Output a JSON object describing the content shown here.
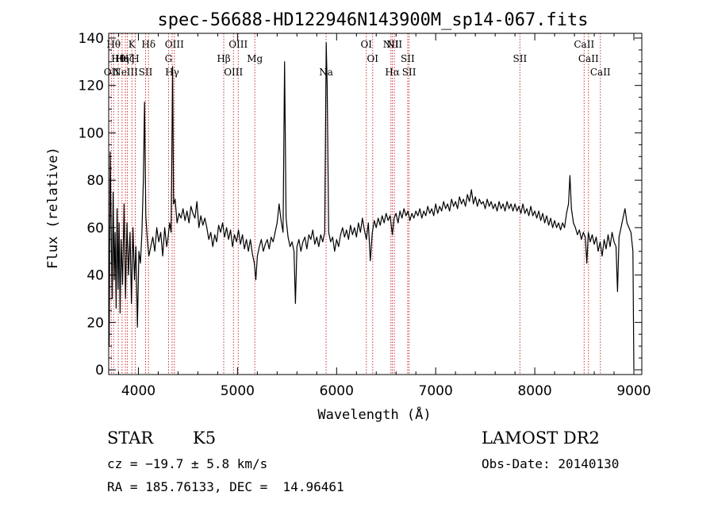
{
  "chart_data": {
    "type": "line",
    "title": "spec-56688-HD122946N143900M_sp14-067.fits",
    "xlabel": "Wavelength (Å)",
    "ylabel": "Flux (relative)",
    "xlim": [
      3700,
      9080
    ],
    "ylim": [
      -2,
      142
    ],
    "x_ticks": [
      4000,
      5000,
      6000,
      7000,
      8000,
      9000
    ],
    "y_ticks": [
      0,
      20,
      40,
      60,
      80,
      100,
      120,
      140
    ],
    "grid": false,
    "series": [
      {
        "color": "#000000",
        "points": [
          [
            3705,
            10
          ],
          [
            3715,
            92
          ],
          [
            3725,
            60
          ],
          [
            3735,
            30
          ],
          [
            3745,
            75
          ],
          [
            3755,
            38
          ],
          [
            3765,
            58
          ],
          [
            3775,
            26
          ],
          [
            3785,
            68
          ],
          [
            3795,
            34
          ],
          [
            3805,
            62
          ],
          [
            3815,
            24
          ],
          [
            3825,
            55
          ],
          [
            3840,
            36
          ],
          [
            3855,
            70
          ],
          [
            3870,
            30
          ],
          [
            3885,
            62
          ],
          [
            3900,
            40
          ],
          [
            3915,
            58
          ],
          [
            3930,
            28
          ],
          [
            3945,
            60
          ],
          [
            3960,
            38
          ],
          [
            3975,
            52
          ],
          [
            3990,
            18
          ],
          [
            4005,
            50
          ],
          [
            4020,
            45
          ],
          [
            4035,
            57
          ],
          [
            4050,
            80
          ],
          [
            4062,
            113
          ],
          [
            4075,
            65
          ],
          [
            4090,
            55
          ],
          [
            4105,
            48
          ],
          [
            4125,
            52
          ],
          [
            4145,
            56
          ],
          [
            4165,
            50
          ],
          [
            4185,
            60
          ],
          [
            4205,
            54
          ],
          [
            4225,
            58
          ],
          [
            4245,
            48
          ],
          [
            4265,
            60
          ],
          [
            4285,
            52
          ],
          [
            4300,
            56
          ],
          [
            4315,
            62
          ],
          [
            4330,
            58
          ],
          [
            4345,
            128
          ],
          [
            4355,
            70
          ],
          [
            4370,
            72
          ],
          [
            4390,
            62
          ],
          [
            4410,
            66
          ],
          [
            4430,
            64
          ],
          [
            4450,
            68
          ],
          [
            4470,
            63
          ],
          [
            4490,
            67
          ],
          [
            4510,
            62
          ],
          [
            4530,
            69
          ],
          [
            4550,
            66
          ],
          [
            4570,
            64
          ],
          [
            4590,
            71
          ],
          [
            4610,
            60
          ],
          [
            4630,
            65
          ],
          [
            4650,
            61
          ],
          [
            4670,
            64
          ],
          [
            4690,
            60
          ],
          [
            4710,
            55
          ],
          [
            4730,
            58
          ],
          [
            4750,
            52
          ],
          [
            4770,
            57
          ],
          [
            4790,
            54
          ],
          [
            4810,
            61
          ],
          [
            4830,
            58
          ],
          [
            4850,
            62
          ],
          [
            4870,
            56
          ],
          [
            4890,
            60
          ],
          [
            4910,
            55
          ],
          [
            4930,
            59
          ],
          [
            4950,
            52
          ],
          [
            4970,
            57
          ],
          [
            4990,
            54
          ],
          [
            5010,
            59
          ],
          [
            5030,
            53
          ],
          [
            5050,
            57
          ],
          [
            5070,
            51
          ],
          [
            5090,
            55
          ],
          [
            5110,
            50
          ],
          [
            5130,
            55
          ],
          [
            5150,
            49
          ],
          [
            5170,
            45
          ],
          [
            5185,
            38
          ],
          [
            5200,
            48
          ],
          [
            5220,
            52
          ],
          [
            5240,
            55
          ],
          [
            5260,
            50
          ],
          [
            5280,
            53
          ],
          [
            5300,
            55
          ],
          [
            5320,
            51
          ],
          [
            5340,
            56
          ],
          [
            5360,
            54
          ],
          [
            5380,
            58
          ],
          [
            5400,
            62
          ],
          [
            5420,
            70
          ],
          [
            5440,
            63
          ],
          [
            5460,
            58
          ],
          [
            5475,
            130
          ],
          [
            5490,
            64
          ],
          [
            5510,
            56
          ],
          [
            5530,
            52
          ],
          [
            5550,
            54
          ],
          [
            5570,
            50
          ],
          [
            5585,
            28
          ],
          [
            5600,
            52
          ],
          [
            5620,
            55
          ],
          [
            5640,
            50
          ],
          [
            5660,
            54
          ],
          [
            5680,
            56
          ],
          [
            5700,
            51
          ],
          [
            5720,
            57
          ],
          [
            5740,
            55
          ],
          [
            5760,
            59
          ],
          [
            5780,
            53
          ],
          [
            5800,
            56
          ],
          [
            5820,
            52
          ],
          [
            5840,
            57
          ],
          [
            5860,
            54
          ],
          [
            5880,
            58
          ],
          [
            5895,
            138
          ],
          [
            5905,
            120
          ],
          [
            5920,
            58
          ],
          [
            5940,
            54
          ],
          [
            5960,
            56
          ],
          [
            5980,
            50
          ],
          [
            6000,
            55
          ],
          [
            6020,
            52
          ],
          [
            6040,
            57
          ],
          [
            6060,
            60
          ],
          [
            6080,
            56
          ],
          [
            6100,
            59
          ],
          [
            6120,
            55
          ],
          [
            6140,
            61
          ],
          [
            6160,
            57
          ],
          [
            6180,
            60
          ],
          [
            6200,
            56
          ],
          [
            6220,
            62
          ],
          [
            6240,
            58
          ],
          [
            6260,
            64
          ],
          [
            6280,
            59
          ],
          [
            6300,
            55
          ],
          [
            6320,
            62
          ],
          [
            6340,
            46
          ],
          [
            6360,
            58
          ],
          [
            6380,
            63
          ],
          [
            6400,
            60
          ],
          [
            6420,
            64
          ],
          [
            6440,
            61
          ],
          [
            6460,
            65
          ],
          [
            6480,
            62
          ],
          [
            6500,
            66
          ],
          [
            6520,
            63
          ],
          [
            6540,
            65
          ],
          [
            6563,
            57
          ],
          [
            6580,
            64
          ],
          [
            6600,
            66
          ],
          [
            6620,
            62
          ],
          [
            6640,
            67
          ],
          [
            6660,
            64
          ],
          [
            6680,
            68
          ],
          [
            6700,
            65
          ],
          [
            6720,
            67
          ],
          [
            6740,
            63
          ],
          [
            6760,
            66
          ],
          [
            6780,
            64
          ],
          [
            6800,
            67
          ],
          [
            6820,
            65
          ],
          [
            6840,
            68
          ],
          [
            6860,
            64
          ],
          [
            6880,
            67
          ],
          [
            6900,
            65
          ],
          [
            6920,
            69
          ],
          [
            6940,
            66
          ],
          [
            6960,
            68
          ],
          [
            6980,
            65
          ],
          [
            7000,
            70
          ],
          [
            7020,
            66
          ],
          [
            7040,
            69
          ],
          [
            7060,
            67
          ],
          [
            7080,
            71
          ],
          [
            7100,
            68
          ],
          [
            7120,
            70
          ],
          [
            7140,
            67
          ],
          [
            7160,
            72
          ],
          [
            7180,
            69
          ],
          [
            7200,
            71
          ],
          [
            7220,
            68
          ],
          [
            7240,
            73
          ],
          [
            7260,
            70
          ],
          [
            7280,
            72
          ],
          [
            7300,
            69
          ],
          [
            7320,
            74
          ],
          [
            7340,
            71
          ],
          [
            7360,
            76
          ],
          [
            7380,
            70
          ],
          [
            7400,
            73
          ],
          [
            7420,
            69
          ],
          [
            7440,
            72
          ],
          [
            7460,
            70
          ],
          [
            7480,
            71
          ],
          [
            7500,
            68
          ],
          [
            7520,
            72
          ],
          [
            7540,
            69
          ],
          [
            7560,
            71
          ],
          [
            7580,
            68
          ],
          [
            7600,
            70
          ],
          [
            7620,
            67
          ],
          [
            7640,
            71
          ],
          [
            7660,
            68
          ],
          [
            7680,
            70
          ],
          [
            7700,
            67
          ],
          [
            7720,
            71
          ],
          [
            7740,
            68
          ],
          [
            7760,
            70
          ],
          [
            7780,
            67
          ],
          [
            7800,
            70
          ],
          [
            7820,
            67
          ],
          [
            7840,
            69
          ],
          [
            7860,
            66
          ],
          [
            7880,
            70
          ],
          [
            7900,
            66
          ],
          [
            7920,
            68
          ],
          [
            7940,
            65
          ],
          [
            7960,
            69
          ],
          [
            7980,
            65
          ],
          [
            8000,
            67
          ],
          [
            8020,
            64
          ],
          [
            8040,
            67
          ],
          [
            8060,
            63
          ],
          [
            8080,
            66
          ],
          [
            8100,
            62
          ],
          [
            8120,
            65
          ],
          [
            8140,
            61
          ],
          [
            8160,
            64
          ],
          [
            8180,
            60
          ],
          [
            8200,
            63
          ],
          [
            8220,
            60
          ],
          [
            8240,
            62
          ],
          [
            8260,
            59
          ],
          [
            8280,
            62
          ],
          [
            8300,
            60
          ],
          [
            8320,
            66
          ],
          [
            8340,
            70
          ],
          [
            8355,
            82
          ],
          [
            8370,
            68
          ],
          [
            8390,
            62
          ],
          [
            8410,
            60
          ],
          [
            8430,
            57
          ],
          [
            8450,
            59
          ],
          [
            8470,
            55
          ],
          [
            8490,
            58
          ],
          [
            8510,
            56
          ],
          [
            8525,
            45
          ],
          [
            8540,
            58
          ],
          [
            8560,
            54
          ],
          [
            8580,
            57
          ],
          [
            8600,
            53
          ],
          [
            8620,
            56
          ],
          [
            8640,
            50
          ],
          [
            8660,
            54
          ],
          [
            8680,
            48
          ],
          [
            8700,
            55
          ],
          [
            8720,
            51
          ],
          [
            8740,
            57
          ],
          [
            8760,
            52
          ],
          [
            8780,
            58
          ],
          [
            8800,
            54
          ],
          [
            8820,
            52
          ],
          [
            8835,
            33
          ],
          [
            8850,
            56
          ],
          [
            8870,
            60
          ],
          [
            8890,
            64
          ],
          [
            8910,
            68
          ],
          [
            8930,
            62
          ],
          [
            8950,
            60
          ],
          [
            8970,
            58
          ],
          [
            8990,
            50
          ],
          [
            9000,
            0
          ]
        ]
      }
    ],
    "spectral_lines": [
      {
        "wl": 3727,
        "label": "OII",
        "row": 2
      },
      {
        "wl": 3750,
        "label": "Hθ",
        "row": 0
      },
      {
        "wl": 3797,
        "label": "Hθ",
        "row": 1
      },
      {
        "wl": 3835,
        "label": "Hη",
        "row": 1
      },
      {
        "wl": 3869,
        "label": "NeIII",
        "row": 2
      },
      {
        "wl": 3889,
        "label": "Hζ",
        "row": 1
      },
      {
        "wl": 3934,
        "label": "K",
        "row": 0
      },
      {
        "wl": 3968,
        "label": "H",
        "row": 1
      },
      {
        "wl": 4072,
        "label": "SII",
        "row": 2
      },
      {
        "wl": 4102,
        "label": "Hδ",
        "row": 0
      },
      {
        "wl": 4304,
        "label": "G",
        "row": 1
      },
      {
        "wl": 4340,
        "label": "Hγ",
        "row": 2
      },
      {
        "wl": 4363,
        "label": "OIII",
        "row": 0
      },
      {
        "wl": 4861,
        "label": "Hβ",
        "row": 1
      },
      {
        "wl": 4959,
        "label": "OIII",
        "row": 2
      },
      {
        "wl": 5007,
        "label": "OIII",
        "row": 0
      },
      {
        "wl": 5175,
        "label": "Mg",
        "row": 1
      },
      {
        "wl": 5894,
        "label": "Na",
        "row": 2
      },
      {
        "wl": 6300,
        "label": "OI",
        "row": 0
      },
      {
        "wl": 6364,
        "label": "OI",
        "row": 1
      },
      {
        "wl": 6548,
        "label": "NII",
        "row": 0
      },
      {
        "wl": 6563,
        "label": "Hα",
        "row": 2
      },
      {
        "wl": 6583,
        "label": "NII",
        "row": 0
      },
      {
        "wl": 6717,
        "label": "SII",
        "row": 1
      },
      {
        "wl": 6731,
        "label": "SII",
        "row": 2
      },
      {
        "wl": 7850,
        "label": "SII",
        "row": 1
      },
      {
        "wl": 8498,
        "label": "CaII",
        "row": 0
      },
      {
        "wl": 8542,
        "label": "CaII",
        "row": 1
      },
      {
        "wl": 8662,
        "label": "CaII",
        "row": 2
      }
    ],
    "line_color": "#cc3333"
  },
  "info": {
    "object_class": "STAR",
    "subclass": "K5",
    "survey": "LAMOST DR2",
    "redshift": "cz = −19.7 ± 5.8 km/s",
    "obs_date": "Obs-Date: 20140130",
    "coords": "RA = 185.76133, DEC =  14.96461"
  }
}
